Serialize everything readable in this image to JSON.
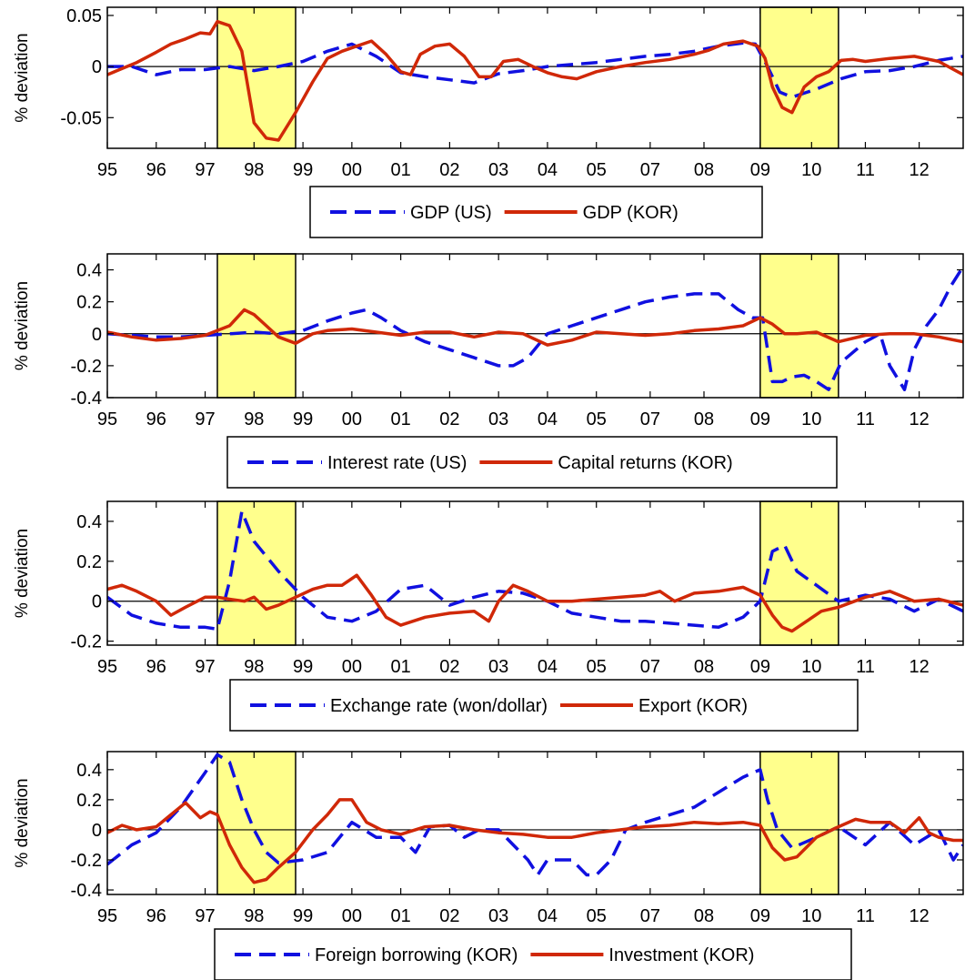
{
  "colors": {
    "us_series": "#1010e0",
    "kor_series": "#d02808",
    "shade": "#ffff8c",
    "axis": "#000000"
  },
  "chart_data": [
    {
      "type": "line",
      "ylabel": "% deviation",
      "ylim": [
        -0.08,
        0.058
      ],
      "yticks": [
        -0.05,
        0,
        0.05
      ],
      "ytick_labels": [
        "-0.05",
        "0",
        "0.05"
      ],
      "xlim": [
        1995.0,
        2012.5
      ],
      "grid": false,
      "zero_line": true,
      "legend_position": "below",
      "shaded_periods": [
        [
          1997.25,
          1998.85
        ],
        [
          2008.35,
          2009.95
        ]
      ],
      "series": [
        {
          "name": "GDP (US)",
          "style": "dashed",
          "color": "#1010e0",
          "x": [
            1995.0,
            1995.5,
            1996.0,
            1996.5,
            1997.0,
            1997.5,
            1998.0,
            1998.5,
            1999.0,
            1999.5,
            2000.0,
            2000.5,
            2001.0,
            2001.5,
            2002.0,
            2002.5,
            2003.0,
            2003.5,
            2004.0,
            2004.5,
            2005.0,
            2005.5,
            2006.0,
            2006.5,
            2007.0,
            2007.5,
            2008.0,
            2008.25,
            2008.5,
            2008.75,
            2009.0,
            2009.5,
            2010.0,
            2010.5,
            2011.0,
            2011.5,
            2012.0,
            2012.5
          ],
          "y": [
            0.0,
            0.0,
            -0.008,
            -0.003,
            -0.003,
            0.0,
            -0.004,
            0.0,
            0.005,
            0.015,
            0.022,
            0.01,
            -0.006,
            -0.01,
            -0.013,
            -0.016,
            -0.007,
            -0.004,
            0.0,
            0.002,
            0.004,
            0.007,
            0.01,
            0.012,
            0.015,
            0.02,
            0.023,
            0.022,
            0.0,
            -0.025,
            -0.03,
            -0.022,
            -0.012,
            -0.005,
            -0.004,
            0.0,
            0.006,
            0.01
          ]
        },
        {
          "name": "GDP (KOR)",
          "style": "solid",
          "color": "#d02808",
          "x": [
            1995.0,
            1995.3,
            1995.6,
            1996.0,
            1996.3,
            1996.6,
            1996.9,
            1997.1,
            1997.25,
            1997.5,
            1997.75,
            1998.0,
            1998.25,
            1998.5,
            1998.85,
            1999.2,
            1999.5,
            1999.8,
            2000.1,
            2000.4,
            2000.7,
            2001.0,
            2001.2,
            2001.4,
            2001.7,
            2002.0,
            2002.3,
            2002.6,
            2002.85,
            2003.1,
            2003.4,
            2003.7,
            2004.0,
            2004.3,
            2004.6,
            2005.0,
            2005.5,
            2006.0,
            2006.5,
            2007.0,
            2007.3,
            2007.6,
            2008.0,
            2008.3,
            2008.45,
            2008.6,
            2008.8,
            2009.0,
            2009.25,
            2009.5,
            2009.75,
            2010.0,
            2010.25,
            2010.5,
            2011.0,
            2011.5,
            2012.0,
            2012.5
          ],
          "y": [
            -0.008,
            -0.002,
            0.004,
            0.014,
            0.022,
            0.027,
            0.033,
            0.032,
            0.044,
            0.04,
            0.015,
            -0.055,
            -0.07,
            -0.072,
            -0.045,
            -0.015,
            0.008,
            0.015,
            0.02,
            0.025,
            0.012,
            -0.005,
            -0.008,
            0.012,
            0.02,
            0.022,
            0.01,
            -0.01,
            -0.01,
            0.005,
            0.007,
            0.0,
            -0.006,
            -0.01,
            -0.012,
            -0.005,
            0.0,
            0.004,
            0.007,
            0.012,
            0.016,
            0.022,
            0.025,
            0.02,
            0.008,
            -0.02,
            -0.04,
            -0.045,
            -0.02,
            -0.01,
            -0.005,
            0.006,
            0.007,
            0.005,
            0.008,
            0.01,
            0.005,
            -0.008
          ]
        }
      ],
      "xtick_labels": [
        "95",
        "96",
        "97",
        "98",
        "99",
        "00",
        "01",
        "02",
        "03",
        "04",
        "05",
        "07",
        "08",
        "09",
        "10",
        "11",
        "12"
      ]
    },
    {
      "type": "line",
      "ylabel": "% deviation",
      "ylim": [
        -0.4,
        0.5
      ],
      "yticks": [
        -0.4,
        -0.2,
        0,
        0.2,
        0.4
      ],
      "ytick_labels": [
        "-0.4",
        "-0.2",
        "0",
        "0.2",
        "0.4"
      ],
      "xlim": [
        1995.0,
        2012.5
      ],
      "grid": false,
      "zero_line": true,
      "legend_position": "below",
      "shaded_periods": [
        [
          1997.25,
          1998.85
        ],
        [
          2008.35,
          2009.95
        ]
      ],
      "series": [
        {
          "name": "Interest rate (US)",
          "style": "dashed",
          "color": "#1010e0",
          "x": [
            1995.0,
            1995.5,
            1996.0,
            1996.5,
            1997.0,
            1997.5,
            1998.0,
            1998.5,
            1999.0,
            1999.5,
            2000.0,
            2000.3,
            2000.6,
            2001.0,
            2001.5,
            2002.0,
            2002.5,
            2003.0,
            2003.3,
            2003.6,
            2004.0,
            2004.5,
            2005.0,
            2005.5,
            2006.0,
            2006.5,
            2007.0,
            2007.5,
            2007.9,
            2008.2,
            2008.4,
            2008.6,
            2008.8,
            2009.0,
            2009.25,
            2009.5,
            2009.75,
            2010.0,
            2010.5,
            2010.8,
            2011.0,
            2011.3,
            2011.5,
            2011.75,
            2012.0,
            2012.25,
            2012.5
          ],
          "y": [
            0.0,
            -0.01,
            -0.02,
            -0.02,
            -0.01,
            0.0,
            0.01,
            0.0,
            0.02,
            0.08,
            0.13,
            0.15,
            0.1,
            0.02,
            -0.05,
            -0.1,
            -0.15,
            -0.2,
            -0.2,
            -0.15,
            0.0,
            0.05,
            0.1,
            0.15,
            0.2,
            0.23,
            0.25,
            0.25,
            0.15,
            0.1,
            0.1,
            -0.3,
            -0.3,
            -0.27,
            -0.26,
            -0.3,
            -0.35,
            -0.18,
            -0.05,
            0.0,
            -0.2,
            -0.35,
            -0.1,
            0.05,
            0.15,
            0.3,
            0.42
          ]
        },
        {
          "name": "Capital returns (KOR)",
          "style": "solid",
          "color": "#d02808",
          "x": [
            1995.0,
            1995.5,
            1996.0,
            1996.5,
            1997.0,
            1997.5,
            1997.8,
            1998.0,
            1998.25,
            1998.5,
            1998.85,
            1999.2,
            1999.5,
            2000.0,
            2000.5,
            2001.0,
            2001.5,
            2002.0,
            2002.5,
            2003.0,
            2003.5,
            2004.0,
            2004.5,
            2005.0,
            2005.5,
            2006.0,
            2006.5,
            2007.0,
            2007.5,
            2008.0,
            2008.35,
            2008.6,
            2008.85,
            2009.1,
            2009.5,
            2009.95,
            2010.5,
            2011.0,
            2011.5,
            2012.0,
            2012.5
          ],
          "y": [
            0.01,
            -0.02,
            -0.04,
            -0.03,
            -0.01,
            0.05,
            0.15,
            0.12,
            0.05,
            -0.02,
            -0.06,
            0.0,
            0.02,
            0.03,
            0.01,
            -0.01,
            0.01,
            0.01,
            -0.02,
            0.01,
            0.0,
            -0.07,
            -0.04,
            0.01,
            0.0,
            -0.01,
            0.0,
            0.02,
            0.03,
            0.05,
            0.1,
            0.06,
            0.0,
            0.0,
            0.01,
            -0.05,
            -0.01,
            0.0,
            0.0,
            -0.02,
            -0.05
          ]
        }
      ],
      "xtick_labels": [
        "95",
        "96",
        "97",
        "98",
        "99",
        "00",
        "01",
        "02",
        "03",
        "04",
        "05",
        "07",
        "08",
        "09",
        "10",
        "11",
        "12"
      ]
    },
    {
      "type": "line",
      "ylabel": "% deviation",
      "ylim": [
        -0.22,
        0.5
      ],
      "yticks": [
        -0.2,
        0,
        0.2,
        0.4
      ],
      "ytick_labels": [
        "-0.2",
        "0",
        "0.2",
        "0.4"
      ],
      "xlim": [
        1995.0,
        2012.5
      ],
      "grid": false,
      "zero_line": true,
      "legend_position": "below",
      "shaded_periods": [
        [
          1997.25,
          1998.85
        ],
        [
          2008.35,
          2009.95
        ]
      ],
      "series": [
        {
          "name": "Exchange rate (won/dollar)",
          "style": "dashed",
          "color": "#1010e0",
          "x": [
            1995.0,
            1995.5,
            1996.0,
            1996.5,
            1997.0,
            1997.25,
            1997.5,
            1997.75,
            1998.0,
            1998.5,
            1999.0,
            1999.5,
            2000.0,
            2000.5,
            2001.0,
            2001.5,
            2002.0,
            2002.5,
            2003.0,
            2003.5,
            2004.0,
            2004.5,
            2005.0,
            2005.5,
            2006.0,
            2006.5,
            2007.0,
            2007.5,
            2008.0,
            2008.35,
            2008.6,
            2008.85,
            2009.1,
            2009.5,
            2009.95,
            2010.5,
            2011.0,
            2011.5,
            2012.0,
            2012.5
          ],
          "y": [
            0.02,
            -0.07,
            -0.11,
            -0.13,
            -0.13,
            -0.14,
            0.1,
            0.45,
            0.3,
            0.15,
            0.02,
            -0.08,
            -0.1,
            -0.05,
            0.06,
            0.08,
            -0.02,
            0.02,
            0.05,
            0.04,
            0.0,
            -0.06,
            -0.08,
            -0.1,
            -0.1,
            -0.11,
            -0.12,
            -0.13,
            -0.08,
            0.0,
            0.25,
            0.28,
            0.15,
            0.08,
            0.0,
            0.03,
            0.01,
            -0.05,
            0.01,
            -0.05
          ]
        },
        {
          "name": "Export (KOR)",
          "style": "solid",
          "color": "#d02808",
          "x": [
            1995.0,
            1995.3,
            1995.6,
            1996.0,
            1996.3,
            1996.6,
            1997.0,
            1997.25,
            1997.5,
            1997.8,
            1998.0,
            1998.25,
            1998.5,
            1998.85,
            1999.2,
            1999.5,
            1999.8,
            2000.1,
            2000.4,
            2000.7,
            2001.0,
            2001.5,
            2002.0,
            2002.5,
            2002.8,
            2003.0,
            2003.3,
            2003.6,
            2004.0,
            2004.5,
            2005.0,
            2005.5,
            2006.0,
            2006.3,
            2006.6,
            2007.0,
            2007.5,
            2008.0,
            2008.35,
            2008.6,
            2008.8,
            2009.0,
            2009.3,
            2009.6,
            2009.95,
            2010.5,
            2011.0,
            2011.5,
            2012.0,
            2012.5
          ],
          "y": [
            0.06,
            0.08,
            0.05,
            0.0,
            -0.07,
            -0.03,
            0.02,
            0.02,
            0.01,
            0.0,
            0.02,
            -0.04,
            -0.02,
            0.02,
            0.06,
            0.08,
            0.08,
            0.13,
            0.03,
            -0.08,
            -0.12,
            -0.08,
            -0.06,
            -0.05,
            -0.1,
            0.0,
            0.08,
            0.05,
            0.0,
            0.0,
            0.01,
            0.02,
            0.03,
            0.05,
            0.0,
            0.04,
            0.05,
            0.07,
            0.03,
            -0.07,
            -0.13,
            -0.15,
            -0.1,
            -0.05,
            -0.03,
            0.02,
            0.05,
            0.0,
            0.01,
            -0.02
          ]
        }
      ],
      "xtick_labels": [
        "95",
        "96",
        "97",
        "98",
        "99",
        "00",
        "01",
        "02",
        "03",
        "04",
        "05",
        "07",
        "08",
        "09",
        "10",
        "11",
        "12"
      ]
    },
    {
      "type": "line",
      "ylabel": "% deviation",
      "ylim": [
        -0.43,
        0.52
      ],
      "yticks": [
        -0.4,
        -0.2,
        0,
        0.2,
        0.4
      ],
      "ytick_labels": [
        "-0.4",
        "-0.2",
        "0",
        "0.2",
        "0.4"
      ],
      "xlim": [
        1995.0,
        2012.5
      ],
      "grid": false,
      "zero_line": true,
      "legend_position": "below",
      "shaded_periods": [
        [
          1997.25,
          1998.85
        ],
        [
          2008.35,
          2009.95
        ]
      ],
      "series": [
        {
          "name": "Foreign borrowing (KOR)",
          "style": "dashed",
          "color": "#1010e0",
          "x": [
            1995.0,
            1995.5,
            1996.0,
            1996.5,
            1997.0,
            1997.25,
            1997.5,
            1997.75,
            1998.0,
            1998.25,
            1998.5,
            1999.0,
            1999.5,
            2000.0,
            2000.5,
            2001.0,
            2001.3,
            2001.6,
            2002.0,
            2002.3,
            2002.6,
            2003.0,
            2003.3,
            2003.6,
            2003.8,
            2004.0,
            2004.5,
            2004.8,
            2005.0,
            2005.3,
            2005.6,
            2006.0,
            2006.5,
            2007.0,
            2007.5,
            2008.0,
            2008.35,
            2008.5,
            2008.7,
            2009.0,
            2009.5,
            2009.95,
            2010.5,
            2011.0,
            2011.5,
            2012.0,
            2012.3,
            2012.5
          ],
          "y": [
            -0.23,
            -0.1,
            -0.02,
            0.15,
            0.38,
            0.5,
            0.45,
            0.2,
            0.0,
            -0.15,
            -0.22,
            -0.2,
            -0.15,
            0.05,
            -0.05,
            -0.05,
            -0.15,
            0.02,
            0.03,
            -0.05,
            0.0,
            0.0,
            -0.1,
            -0.2,
            -0.3,
            -0.2,
            -0.2,
            -0.3,
            -0.3,
            -0.2,
            0.0,
            0.05,
            0.1,
            0.15,
            0.25,
            0.35,
            0.4,
            0.2,
            0.0,
            -0.12,
            -0.05,
            0.02,
            -0.1,
            0.05,
            -0.1,
            0.0,
            -0.2,
            -0.1
          ]
        },
        {
          "name": "Investment (KOR)",
          "style": "solid",
          "color": "#d02808",
          "x": [
            1995.0,
            1995.3,
            1995.6,
            1996.0,
            1996.3,
            1996.6,
            1996.9,
            1997.1,
            1997.25,
            1997.5,
            1997.75,
            1998.0,
            1998.25,
            1998.5,
            1998.85,
            1999.2,
            1999.5,
            1999.75,
            2000.0,
            2000.3,
            2000.6,
            2001.0,
            2001.5,
            2002.0,
            2002.5,
            2003.0,
            2003.5,
            2004.0,
            2004.5,
            2005.0,
            2005.5,
            2006.0,
            2006.5,
            2007.0,
            2007.5,
            2008.0,
            2008.35,
            2008.6,
            2008.85,
            2009.1,
            2009.5,
            2009.95,
            2010.3,
            2010.6,
            2011.0,
            2011.3,
            2011.6,
            2011.8,
            2012.0,
            2012.3,
            2012.5
          ],
          "y": [
            -0.02,
            0.03,
            0.0,
            0.02,
            0.1,
            0.18,
            0.08,
            0.12,
            0.1,
            -0.1,
            -0.25,
            -0.35,
            -0.33,
            -0.25,
            -0.15,
            0.0,
            0.1,
            0.2,
            0.2,
            0.05,
            0.0,
            -0.03,
            0.02,
            0.03,
            0.0,
            -0.02,
            -0.03,
            -0.05,
            -0.05,
            -0.02,
            0.0,
            0.02,
            0.03,
            0.05,
            0.04,
            0.05,
            0.03,
            -0.12,
            -0.2,
            -0.18,
            -0.05,
            0.02,
            0.07,
            0.05,
            0.05,
            -0.02,
            0.08,
            -0.02,
            -0.05,
            -0.07,
            -0.07
          ]
        }
      ],
      "xtick_labels": [
        "95",
        "96",
        "97",
        "98",
        "99",
        "00",
        "01",
        "02",
        "03",
        "04",
        "05",
        "07",
        "08",
        "09",
        "10",
        "11",
        "12"
      ]
    }
  ]
}
